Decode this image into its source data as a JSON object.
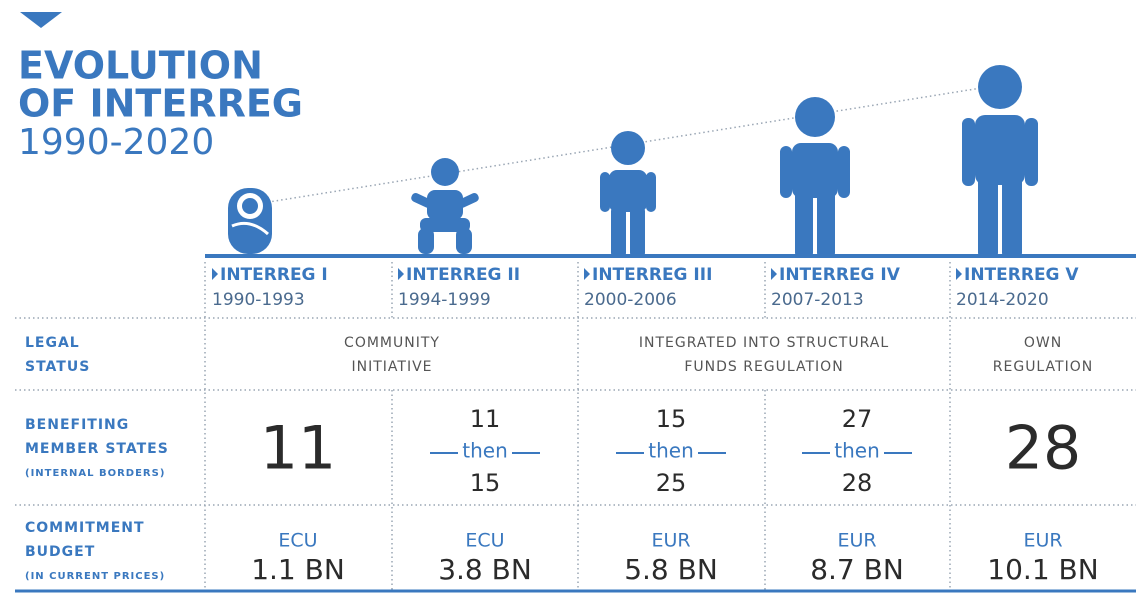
{
  "header": {
    "title_lines": [
      "EVOLUTION",
      "OF INTERREG"
    ],
    "years": "1990-2020"
  },
  "periods": [
    {
      "name": "INTERREG I",
      "years": "1990-1993"
    },
    {
      "name": "INTERREG II",
      "years": "1994-1999"
    },
    {
      "name": "INTERREG III",
      "years": "2000-2006"
    },
    {
      "name": "INTERREG IV",
      "years": "2007-2013"
    },
    {
      "name": "INTERREG V",
      "years": "2014-2020"
    }
  ],
  "legal_status": {
    "label": [
      "LEGAL",
      "STATUS"
    ],
    "cells": [
      [
        "COMMUNITY",
        "INITIATIVE"
      ],
      [
        "INTEGRATED INTO STRUCTURAL",
        "FUNDS REGULATION"
      ],
      [
        "OWN",
        "REGULATION"
      ]
    ]
  },
  "member_states": {
    "label": [
      "BENEFITING",
      "MEMBER STATES",
      "(INTERNAL BORDERS)"
    ],
    "cells": [
      "11",
      {
        "first": "11",
        "word": "then",
        "last": "15"
      },
      {
        "first": "15",
        "word": "then",
        "last": "25"
      },
      {
        "first": "27",
        "word": "then",
        "last": "28"
      },
      "28"
    ]
  },
  "budget": {
    "label": [
      "COMMITMENT",
      "BUDGET",
      "(IN CURRENT PRICES)"
    ],
    "cells": [
      {
        "currency": "ECU",
        "amount": "1.1 BN"
      },
      {
        "currency": "ECU",
        "amount": "3.8 BN"
      },
      {
        "currency": "EUR",
        "amount": "5.8 BN"
      },
      {
        "currency": "EUR",
        "amount": "8.7 BN"
      },
      {
        "currency": "EUR",
        "amount": "10.1 BN"
      }
    ]
  }
}
